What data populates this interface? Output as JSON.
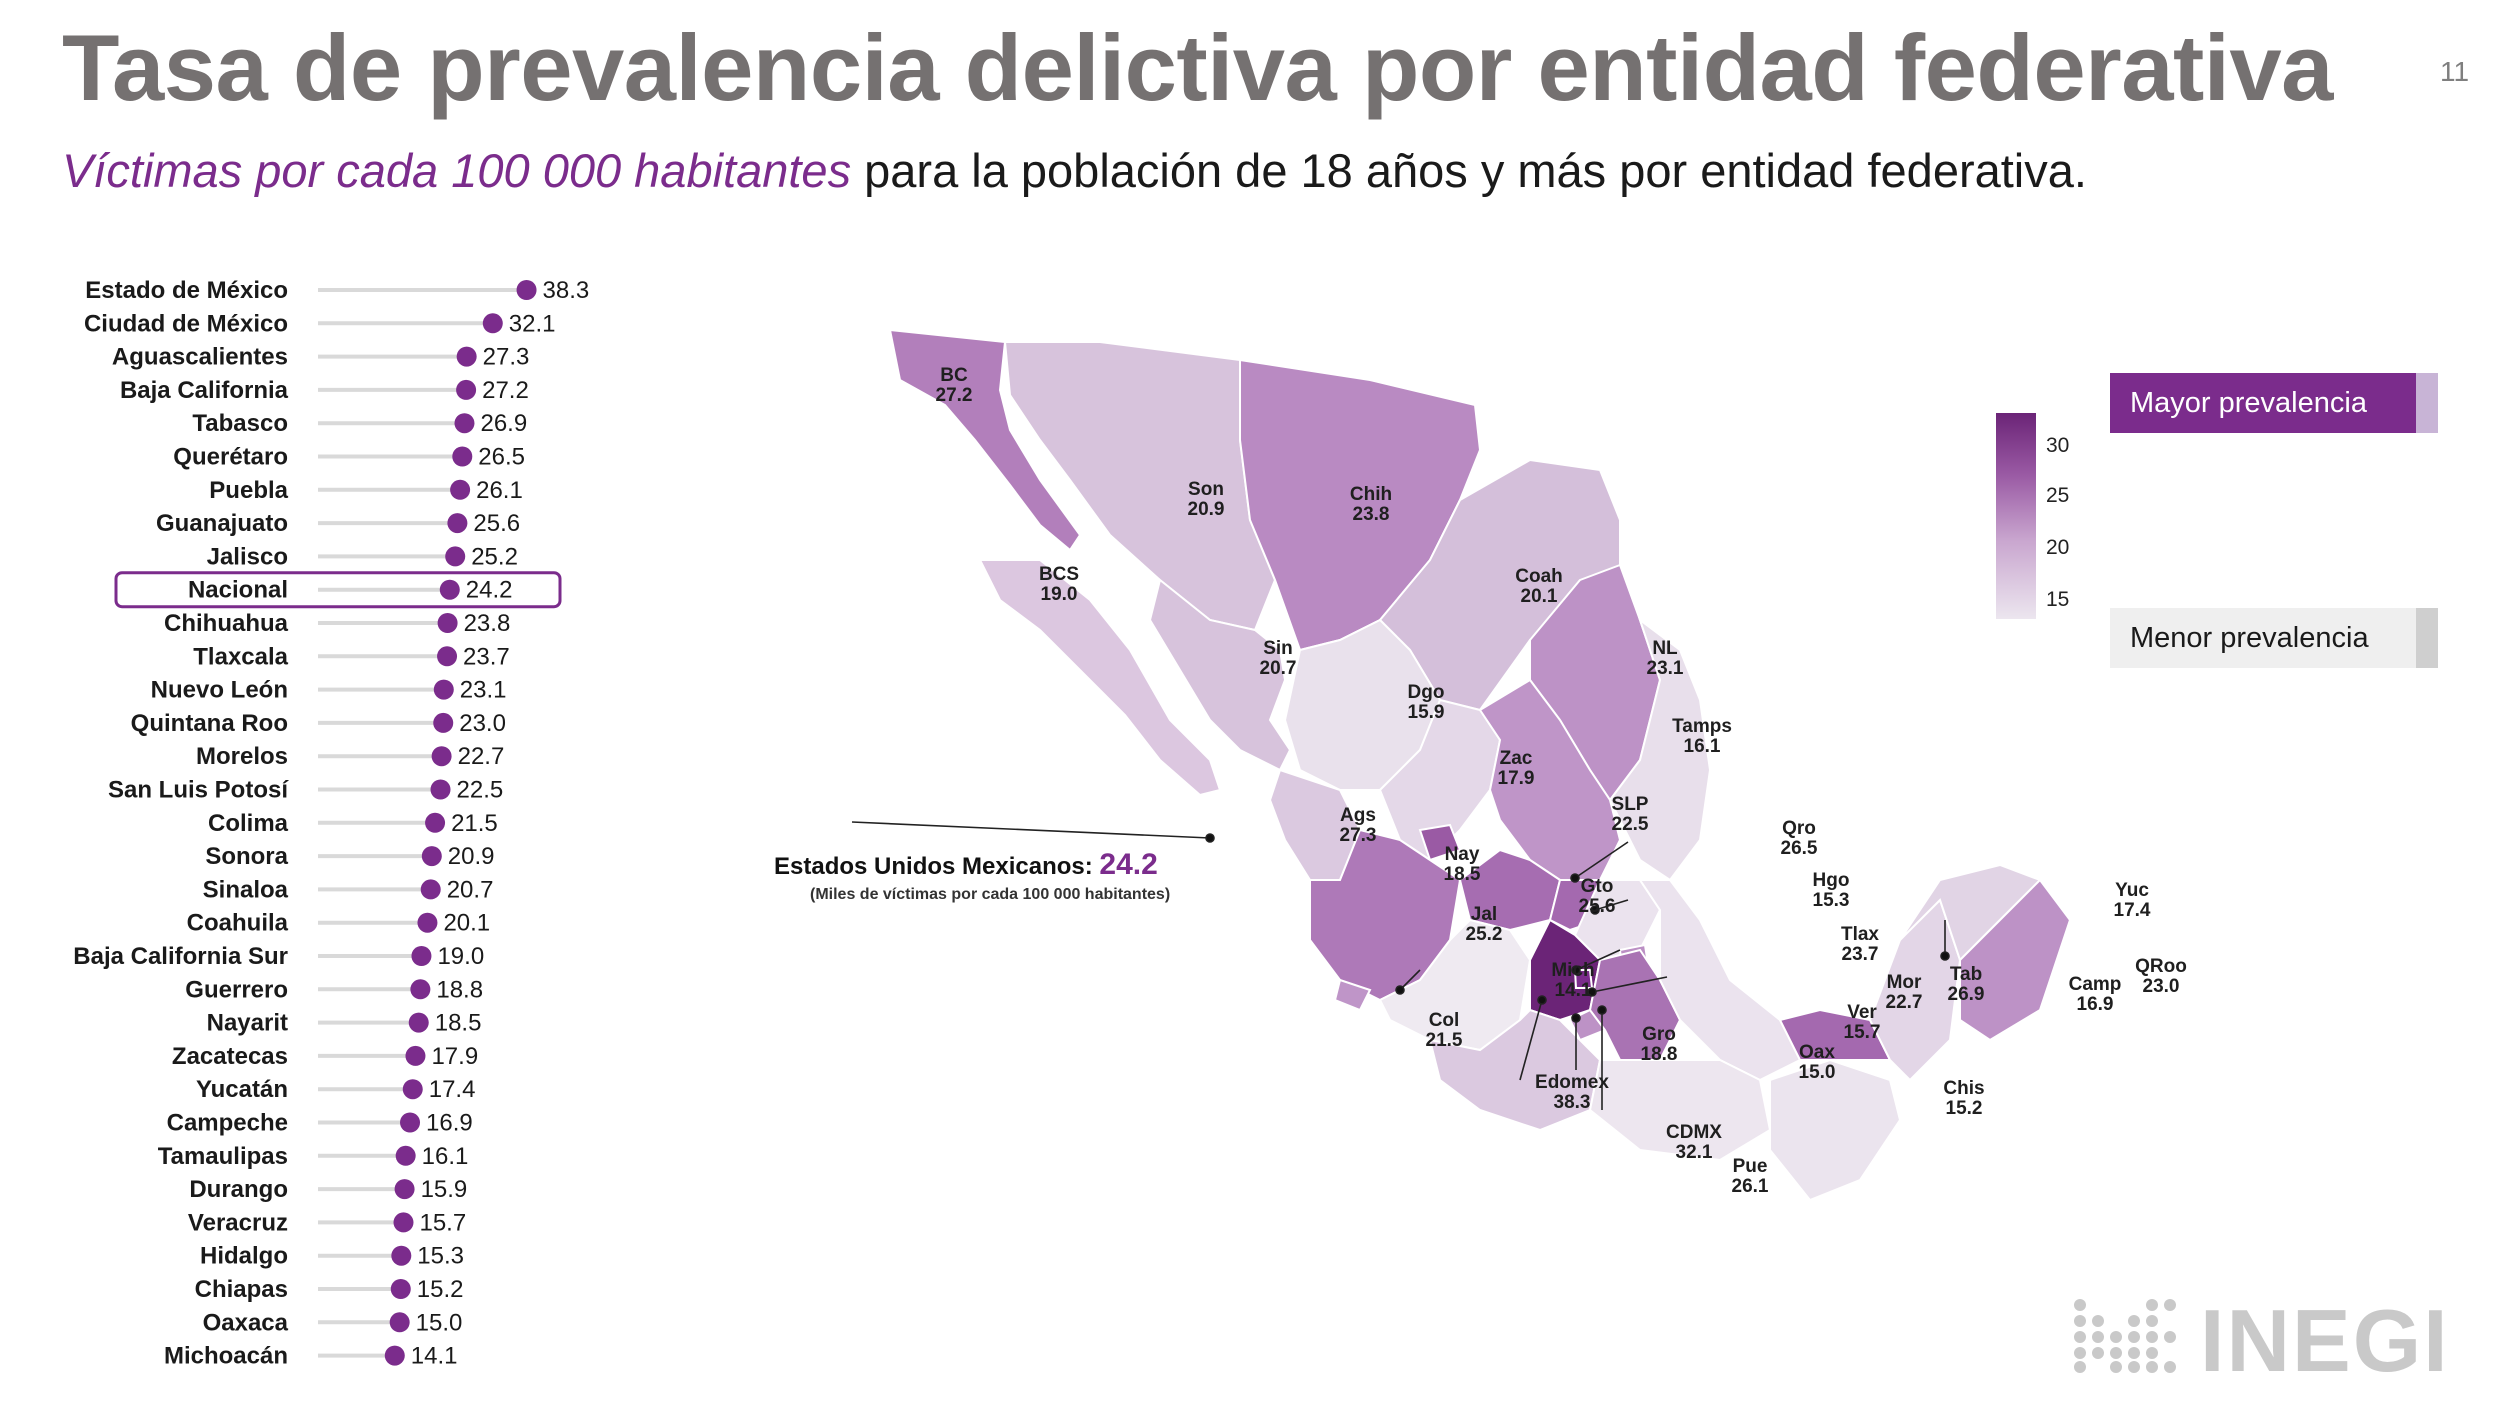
{
  "header": {
    "title": "Tasa de prevalencia delictiva por entidad federativa",
    "page_number": "11",
    "subtitle_highlight": "Víctimas por cada 100 000 habitantes",
    "subtitle_rest": " para la población de 18 años y más por entidad federativa."
  },
  "chart_data": {
    "type": "bar",
    "subtype": "lollipop",
    "categories": [
      "Estado de México",
      "Ciudad de México",
      "Aguascalientes",
      "Baja California",
      "Tabasco",
      "Querétaro",
      "Puebla",
      "Guanajuato",
      "Jalisco",
      "Nacional",
      "Chihuahua",
      "Tlaxcala",
      "Nuevo León",
      "Quintana Roo",
      "Morelos",
      "San Luis Potosí",
      "Colima",
      "Sonora",
      "Sinaloa",
      "Coahuila",
      "Baja California Sur",
      "Guerrero",
      "Nayarit",
      "Zacatecas",
      "Yucatán",
      "Campeche",
      "Tamaulipas",
      "Durango",
      "Veracruz",
      "Hidalgo",
      "Chiapas",
      "Oaxaca",
      "Michoacán"
    ],
    "values": [
      38.3,
      32.1,
      27.3,
      27.2,
      26.9,
      26.5,
      26.1,
      25.6,
      25.2,
      24.2,
      23.8,
      23.7,
      23.1,
      23.0,
      22.7,
      22.5,
      21.5,
      20.9,
      20.7,
      20.1,
      19.0,
      18.8,
      18.5,
      17.9,
      17.4,
      16.9,
      16.1,
      15.9,
      15.7,
      15.3,
      15.2,
      15.0,
      14.1
    ],
    "value_labels": [
      "38.3",
      "32.1",
      "27.3",
      "27.2",
      "26.9",
      "26.5",
      "26.1",
      "25.6",
      "25.2",
      "24.2",
      "23.8",
      "23.7",
      "23.1",
      "23.0",
      "22.7",
      "22.5",
      "21.5",
      "20.9",
      "20.7",
      "20.1",
      "19.0",
      "18.8",
      "18.5",
      "17.9",
      "17.4",
      "16.9",
      "16.1",
      "15.9",
      "15.7",
      "15.3",
      "15.2",
      "15.0",
      "14.1"
    ],
    "highlighted_category": "Nacional",
    "xlim": [
      0,
      40
    ],
    "orientation": "horizontal",
    "grid": false,
    "colors": {
      "dot": "#7b2c8c",
      "stem": "#d9d9d9",
      "highlight_box": "#7b2c8c"
    }
  },
  "map": {
    "national_label": "Estados Unidos Mexicanos:",
    "national_value": "24.2",
    "national_note": "(Miles de víctimas por cada 100 000 habitantes)",
    "legend_ticks": [
      "30",
      "25",
      "20",
      "15"
    ],
    "legend_high": "Mayor prevalencia",
    "legend_low": "Menor prevalencia",
    "state_labels": [
      {
        "abbr": "BC",
        "value": "27.2"
      },
      {
        "abbr": "BCS",
        "value": "19.0"
      },
      {
        "abbr": "Son",
        "value": "20.9"
      },
      {
        "abbr": "Chih",
        "value": "23.8"
      },
      {
        "abbr": "Coah",
        "value": "20.1"
      },
      {
        "abbr": "NL",
        "value": "23.1"
      },
      {
        "abbr": "Sin",
        "value": "20.7"
      },
      {
        "abbr": "Dgo",
        "value": "15.9"
      },
      {
        "abbr": "Tamps",
        "value": "16.1"
      },
      {
        "abbr": "Zac",
        "value": "17.9"
      },
      {
        "abbr": "SLP",
        "value": "22.5"
      },
      {
        "abbr": "Ags",
        "value": "27.3"
      },
      {
        "abbr": "Nay",
        "value": "18.5"
      },
      {
        "abbr": "Qro",
        "value": "26.5"
      },
      {
        "abbr": "Gto",
        "value": "25.6"
      },
      {
        "abbr": "Hgo",
        "value": "15.3"
      },
      {
        "abbr": "Jal",
        "value": "25.2"
      },
      {
        "abbr": "Tlax",
        "value": "23.7"
      },
      {
        "abbr": "Mich",
        "value": "14.1"
      },
      {
        "abbr": "Mor",
        "value": "22.7"
      },
      {
        "abbr": "Col",
        "value": "21.5"
      },
      {
        "abbr": "Ver",
        "value": "15.7"
      },
      {
        "abbr": "Gro",
        "value": "18.8"
      },
      {
        "abbr": "Edomex",
        "value": "38.3"
      },
      {
        "abbr": "Oax",
        "value": "15.0"
      },
      {
        "abbr": "CDMX",
        "value": "32.1"
      },
      {
        "abbr": "Pue",
        "value": "26.1"
      },
      {
        "abbr": "Tab",
        "value": "26.9"
      },
      {
        "abbr": "Chis",
        "value": "15.2"
      },
      {
        "abbr": "Yuc",
        "value": "17.4"
      },
      {
        "abbr": "Camp",
        "value": "16.9"
      },
      {
        "abbr": "QRoo",
        "value": "23.0"
      }
    ]
  },
  "logo": {
    "text": "INEGI"
  }
}
